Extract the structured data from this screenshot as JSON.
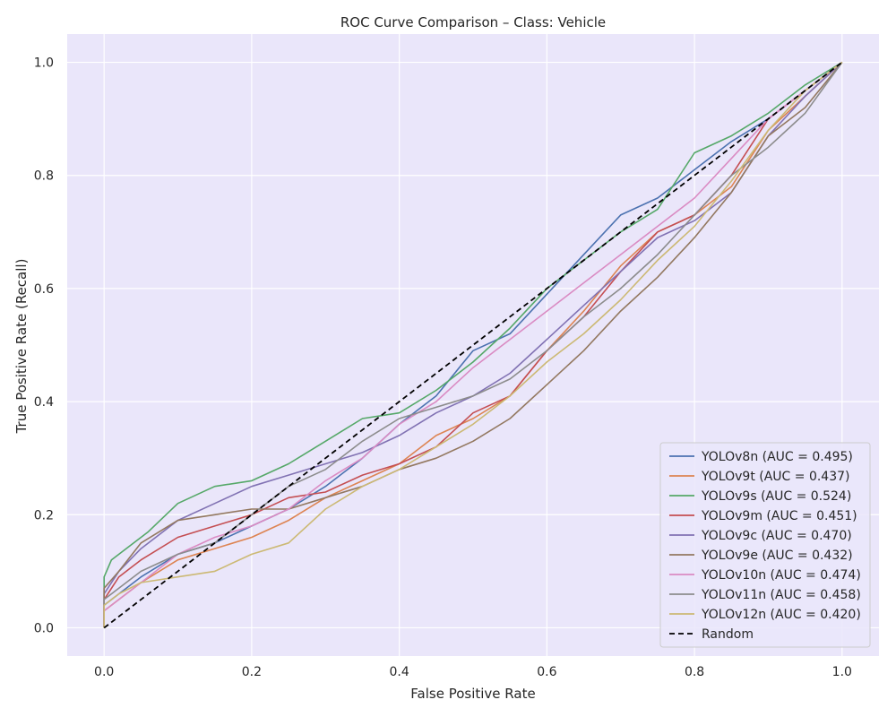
{
  "chart_data": {
    "type": "line",
    "title": "ROC Curve Comparison – Class: Vehicle",
    "xlabel": "False Positive Rate",
    "ylabel": "True Positive Rate (Recall)",
    "xlim": [
      -0.05,
      1.05
    ],
    "ylim": [
      -0.05,
      1.05
    ],
    "x_ticks": [
      "0.0",
      "0.2",
      "0.4",
      "0.6",
      "0.8",
      "1.0"
    ],
    "y_ticks": [
      "0.0",
      "0.2",
      "0.4",
      "0.6",
      "0.8",
      "1.0"
    ],
    "grid": true,
    "legend_position": "lower-right",
    "background_color": "#eae6fa",
    "series": [
      {
        "name": "YOLOv8n (AUC = 0.495)",
        "color": "#4c72b0",
        "points": [
          [
            0,
            0
          ],
          [
            0,
            0.04
          ],
          [
            0.02,
            0.06
          ],
          [
            0.05,
            0.09
          ],
          [
            0.1,
            0.13
          ],
          [
            0.15,
            0.15
          ],
          [
            0.2,
            0.18
          ],
          [
            0.25,
            0.21
          ],
          [
            0.3,
            0.25
          ],
          [
            0.35,
            0.3
          ],
          [
            0.4,
            0.36
          ],
          [
            0.45,
            0.41
          ],
          [
            0.5,
            0.49
          ],
          [
            0.55,
            0.52
          ],
          [
            0.6,
            0.59
          ],
          [
            0.65,
            0.66
          ],
          [
            0.7,
            0.73
          ],
          [
            0.75,
            0.76
          ],
          [
            0.8,
            0.81
          ],
          [
            0.85,
            0.86
          ],
          [
            0.9,
            0.9
          ],
          [
            0.95,
            0.95
          ],
          [
            1,
            1
          ]
        ]
      },
      {
        "name": "YOLOv9t (AUC = 0.437)",
        "color": "#dd8452",
        "points": [
          [
            0,
            0
          ],
          [
            0,
            0.03
          ],
          [
            0.02,
            0.05
          ],
          [
            0.05,
            0.08
          ],
          [
            0.1,
            0.12
          ],
          [
            0.15,
            0.14
          ],
          [
            0.2,
            0.16
          ],
          [
            0.25,
            0.19
          ],
          [
            0.3,
            0.23
          ],
          [
            0.35,
            0.26
          ],
          [
            0.4,
            0.29
          ],
          [
            0.45,
            0.34
          ],
          [
            0.5,
            0.37
          ],
          [
            0.55,
            0.41
          ],
          [
            0.6,
            0.49
          ],
          [
            0.65,
            0.56
          ],
          [
            0.7,
            0.64
          ],
          [
            0.75,
            0.7
          ],
          [
            0.8,
            0.73
          ],
          [
            0.85,
            0.78
          ],
          [
            0.9,
            0.88
          ],
          [
            0.95,
            0.94
          ],
          [
            1,
            1
          ]
        ]
      },
      {
        "name": "YOLOv9s (AUC = 0.524)",
        "color": "#55a868",
        "points": [
          [
            0,
            0
          ],
          [
            0,
            0.09
          ],
          [
            0.01,
            0.12
          ],
          [
            0.03,
            0.14
          ],
          [
            0.06,
            0.17
          ],
          [
            0.1,
            0.22
          ],
          [
            0.15,
            0.25
          ],
          [
            0.2,
            0.26
          ],
          [
            0.25,
            0.29
          ],
          [
            0.3,
            0.33
          ],
          [
            0.35,
            0.37
          ],
          [
            0.4,
            0.38
          ],
          [
            0.45,
            0.42
          ],
          [
            0.5,
            0.47
          ],
          [
            0.55,
            0.53
          ],
          [
            0.6,
            0.6
          ],
          [
            0.65,
            0.65
          ],
          [
            0.7,
            0.7
          ],
          [
            0.75,
            0.74
          ],
          [
            0.8,
            0.84
          ],
          [
            0.85,
            0.87
          ],
          [
            0.9,
            0.91
          ],
          [
            0.95,
            0.96
          ],
          [
            1,
            1
          ]
        ]
      },
      {
        "name": "YOLOv9m (AUC = 0.451)",
        "color": "#c44e52",
        "points": [
          [
            0,
            0
          ],
          [
            0,
            0.05
          ],
          [
            0.02,
            0.09
          ],
          [
            0.05,
            0.12
          ],
          [
            0.1,
            0.16
          ],
          [
            0.15,
            0.18
          ],
          [
            0.2,
            0.2
          ],
          [
            0.25,
            0.23
          ],
          [
            0.3,
            0.24
          ],
          [
            0.35,
            0.27
          ],
          [
            0.4,
            0.29
          ],
          [
            0.45,
            0.32
          ],
          [
            0.5,
            0.38
          ],
          [
            0.55,
            0.41
          ],
          [
            0.6,
            0.49
          ],
          [
            0.65,
            0.55
          ],
          [
            0.7,
            0.63
          ],
          [
            0.75,
            0.7
          ],
          [
            0.8,
            0.73
          ],
          [
            0.85,
            0.8
          ],
          [
            0.9,
            0.9
          ],
          [
            0.95,
            0.95
          ],
          [
            1,
            1
          ]
        ]
      },
      {
        "name": "YOLOv9c (AUC = 0.470)",
        "color": "#8172b3",
        "points": [
          [
            0,
            0
          ],
          [
            0,
            0.06
          ],
          [
            0.02,
            0.1
          ],
          [
            0.05,
            0.14
          ],
          [
            0.1,
            0.19
          ],
          [
            0.15,
            0.22
          ],
          [
            0.2,
            0.25
          ],
          [
            0.25,
            0.27
          ],
          [
            0.3,
            0.29
          ],
          [
            0.35,
            0.31
          ],
          [
            0.4,
            0.34
          ],
          [
            0.45,
            0.38
          ],
          [
            0.5,
            0.41
          ],
          [
            0.55,
            0.45
          ],
          [
            0.6,
            0.51
          ],
          [
            0.65,
            0.57
          ],
          [
            0.7,
            0.63
          ],
          [
            0.75,
            0.69
          ],
          [
            0.8,
            0.72
          ],
          [
            0.85,
            0.77
          ],
          [
            0.9,
            0.87
          ],
          [
            0.95,
            0.94
          ],
          [
            1,
            1
          ]
        ]
      },
      {
        "name": "YOLOv9e (AUC = 0.432)",
        "color": "#937860",
        "points": [
          [
            0,
            0
          ],
          [
            0,
            0.07
          ],
          [
            0.02,
            0.1
          ],
          [
            0.05,
            0.15
          ],
          [
            0.1,
            0.19
          ],
          [
            0.15,
            0.2
          ],
          [
            0.2,
            0.21
          ],
          [
            0.25,
            0.21
          ],
          [
            0.3,
            0.23
          ],
          [
            0.35,
            0.25
          ],
          [
            0.4,
            0.28
          ],
          [
            0.45,
            0.3
          ],
          [
            0.5,
            0.33
          ],
          [
            0.55,
            0.37
          ],
          [
            0.6,
            0.43
          ],
          [
            0.65,
            0.49
          ],
          [
            0.7,
            0.56
          ],
          [
            0.75,
            0.62
          ],
          [
            0.8,
            0.69
          ],
          [
            0.85,
            0.77
          ],
          [
            0.9,
            0.87
          ],
          [
            0.95,
            0.92
          ],
          [
            1,
            1
          ]
        ]
      },
      {
        "name": "YOLOv10n (AUC = 0.474)",
        "color": "#da8bc3",
        "points": [
          [
            0,
            0
          ],
          [
            0,
            0.03
          ],
          [
            0.02,
            0.05
          ],
          [
            0.05,
            0.08
          ],
          [
            0.1,
            0.13
          ],
          [
            0.15,
            0.16
          ],
          [
            0.2,
            0.18
          ],
          [
            0.25,
            0.21
          ],
          [
            0.3,
            0.26
          ],
          [
            0.35,
            0.3
          ],
          [
            0.4,
            0.36
          ],
          [
            0.45,
            0.4
          ],
          [
            0.5,
            0.46
          ],
          [
            0.55,
            0.51
          ],
          [
            0.6,
            0.56
          ],
          [
            0.65,
            0.61
          ],
          [
            0.7,
            0.66
          ],
          [
            0.75,
            0.71
          ],
          [
            0.8,
            0.76
          ],
          [
            0.85,
            0.83
          ],
          [
            0.9,
            0.9
          ],
          [
            0.95,
            0.95
          ],
          [
            1,
            1
          ]
        ]
      },
      {
        "name": "YOLOv11n (AUC = 0.458)",
        "color": "#8c8c8c",
        "points": [
          [
            0,
            0
          ],
          [
            0,
            0.05
          ],
          [
            0.02,
            0.07
          ],
          [
            0.05,
            0.1
          ],
          [
            0.1,
            0.13
          ],
          [
            0.15,
            0.15
          ],
          [
            0.2,
            0.2
          ],
          [
            0.25,
            0.25
          ],
          [
            0.3,
            0.28
          ],
          [
            0.35,
            0.33
          ],
          [
            0.4,
            0.37
          ],
          [
            0.45,
            0.39
          ],
          [
            0.5,
            0.41
          ],
          [
            0.55,
            0.44
          ],
          [
            0.6,
            0.49
          ],
          [
            0.65,
            0.55
          ],
          [
            0.7,
            0.6
          ],
          [
            0.75,
            0.66
          ],
          [
            0.8,
            0.73
          ],
          [
            0.85,
            0.8
          ],
          [
            0.9,
            0.85
          ],
          [
            0.95,
            0.91
          ],
          [
            1,
            1
          ]
        ]
      },
      {
        "name": "YOLOv12n (AUC = 0.420)",
        "color": "#ccb974",
        "points": [
          [
            0,
            0
          ],
          [
            0,
            0.04
          ],
          [
            0.02,
            0.06
          ],
          [
            0.05,
            0.08
          ],
          [
            0.1,
            0.09
          ],
          [
            0.15,
            0.1
          ],
          [
            0.2,
            0.13
          ],
          [
            0.25,
            0.15
          ],
          [
            0.3,
            0.21
          ],
          [
            0.35,
            0.25
          ],
          [
            0.4,
            0.28
          ],
          [
            0.45,
            0.32
          ],
          [
            0.5,
            0.36
          ],
          [
            0.55,
            0.41
          ],
          [
            0.6,
            0.47
          ],
          [
            0.65,
            0.52
          ],
          [
            0.7,
            0.58
          ],
          [
            0.75,
            0.65
          ],
          [
            0.8,
            0.71
          ],
          [
            0.85,
            0.79
          ],
          [
            0.9,
            0.88
          ],
          [
            0.95,
            0.95
          ],
          [
            1,
            1
          ]
        ]
      },
      {
        "name": "Random",
        "color": "#000000",
        "dashed": true,
        "points": [
          [
            0,
            0
          ],
          [
            1,
            1
          ]
        ]
      }
    ]
  }
}
